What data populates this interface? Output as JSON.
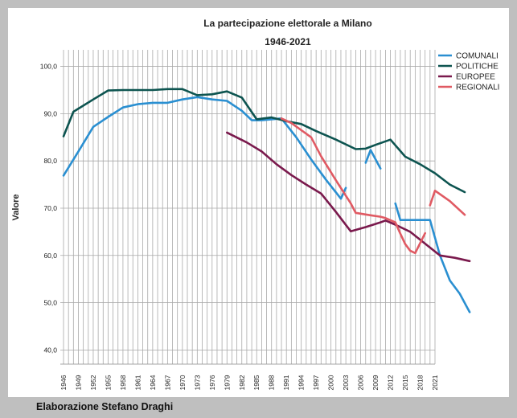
{
  "credit": "Elaborazione Stefano Draghi",
  "chart_data": {
    "type": "line",
    "title": "La partecipazione elettorale a Milano",
    "subtitle": "1946-2021",
    "xlabel": "",
    "ylabel": "Valore",
    "ylim": [
      37.0,
      103.5
    ],
    "yticks": [
      "40,0",
      "50,0",
      "60,0",
      "70,0",
      "80,0",
      "90,0",
      "100,0"
    ],
    "grid": true,
    "legend_position": "top-right",
    "categories": [
      "1946",
      "",
      "",
      "1949",
      "",
      "",
      "1952",
      "",
      "",
      "1955",
      "",
      "",
      "1958",
      "",
      "",
      "1961",
      "",
      "",
      "1964",
      "",
      "",
      "1967",
      "",
      "",
      "1970",
      "",
      "",
      "1973",
      "",
      "",
      "1976",
      "",
      "",
      "1979",
      "",
      "",
      "1982",
      "",
      "",
      "1985",
      "",
      "",
      "1988",
      "",
      "",
      "1991",
      "",
      "",
      "1994",
      "",
      "",
      "1997",
      "",
      "",
      "2000",
      "",
      "",
      "2003",
      "",
      "",
      "2006",
      "",
      "",
      "2009",
      "",
      "",
      "2012",
      "",
      "",
      "2015",
      "",
      "",
      "2018",
      "",
      "",
      "2021"
    ],
    "series": [
      {
        "name": "COMUNALI",
        "color": "#2a8fd1",
        "points": [
          [
            0,
            76.9
          ],
          [
            3,
            82.0
          ],
          [
            6,
            87.2
          ],
          [
            9,
            89.3
          ],
          [
            12,
            91.3
          ],
          [
            15,
            92.0
          ],
          [
            18,
            92.3
          ],
          [
            21,
            92.3
          ],
          [
            24,
            93.0
          ],
          [
            27,
            93.5
          ],
          [
            30,
            93.0
          ],
          [
            33,
            92.7
          ],
          [
            36,
            90.6
          ],
          [
            38,
            88.6
          ],
          [
            40,
            88.6
          ],
          [
            42,
            88.8
          ],
          [
            44,
            89.0
          ],
          [
            47,
            85.0
          ],
          [
            50,
            80.3
          ],
          [
            53,
            76.0
          ],
          [
            56,
            72.0
          ],
          [
            57,
            74.3
          ],
          null,
          [
            61,
            79.6
          ],
          [
            62,
            82.3
          ],
          [
            64,
            78.4
          ],
          null,
          [
            67,
            71.0
          ],
          [
            68,
            67.5
          ],
          [
            71,
            67.5
          ],
          [
            73,
            67.5
          ],
          [
            74,
            67.5
          ],
          [
            76,
            60.0
          ],
          [
            78,
            54.7
          ],
          [
            80,
            51.9
          ],
          [
            82,
            48.0
          ]
        ]
      },
      {
        "name": "POLITICHE",
        "color": "#0d5450",
        "points": [
          [
            0,
            85.2
          ],
          [
            2,
            90.4
          ],
          [
            6,
            93.0
          ],
          [
            9,
            94.9
          ],
          [
            12,
            95.0
          ],
          [
            15,
            95.0
          ],
          [
            18,
            95.0
          ],
          [
            21,
            95.2
          ],
          [
            24,
            95.2
          ],
          [
            27,
            93.9
          ],
          [
            30,
            94.1
          ],
          [
            33,
            94.7
          ],
          [
            36,
            93.4
          ],
          [
            39,
            88.8
          ],
          [
            42,
            89.2
          ],
          [
            45,
            88.4
          ],
          [
            48,
            87.8
          ],
          [
            51,
            86.3
          ],
          [
            55,
            84.5
          ],
          [
            59,
            82.5
          ],
          [
            61,
            82.6
          ],
          [
            63,
            83.4
          ],
          [
            66,
            84.5
          ],
          [
            69,
            80.9
          ],
          [
            72,
            79.3
          ],
          [
            75,
            77.4
          ],
          [
            78,
            75.0
          ],
          [
            81,
            73.4
          ]
        ]
      },
      {
        "name": "EUROPEE",
        "color": "#7a1a4d",
        "points": [
          [
            33,
            86.0
          ],
          [
            37,
            83.9
          ],
          [
            40,
            82.0
          ],
          [
            43,
            79.3
          ],
          [
            46,
            77.0
          ],
          [
            49,
            75.0
          ],
          [
            52,
            73.1
          ],
          [
            55,
            69.2
          ],
          [
            58,
            65.1
          ],
          [
            61,
            66.0
          ],
          [
            64,
            67.0
          ],
          [
            65,
            67.4
          ],
          [
            67,
            66.5
          ],
          [
            70,
            65.0
          ],
          [
            73,
            62.5
          ],
          [
            76,
            60.0
          ],
          [
            79,
            59.5
          ],
          [
            82,
            58.8
          ]
        ]
      },
      {
        "name": "REGIONALI",
        "color": "#e05a63",
        "points": [
          [
            44,
            89.0
          ],
          [
            46,
            88.0
          ],
          [
            50,
            85.0
          ],
          [
            52,
            81.0
          ],
          [
            55,
            75.9
          ],
          [
            58,
            71.0
          ],
          [
            59,
            69.0
          ],
          [
            62,
            68.5
          ],
          [
            64,
            68.2
          ],
          [
            65,
            67.9
          ],
          [
            67,
            67.0
          ],
          [
            68,
            64.6
          ],
          [
            69,
            62.4
          ],
          [
            70,
            61.0
          ],
          [
            71,
            60.5
          ],
          [
            73,
            64.7
          ],
          null,
          [
            74,
            70.6
          ],
          [
            75,
            73.7
          ],
          [
            78,
            71.5
          ],
          [
            81,
            68.6
          ]
        ]
      }
    ]
  }
}
